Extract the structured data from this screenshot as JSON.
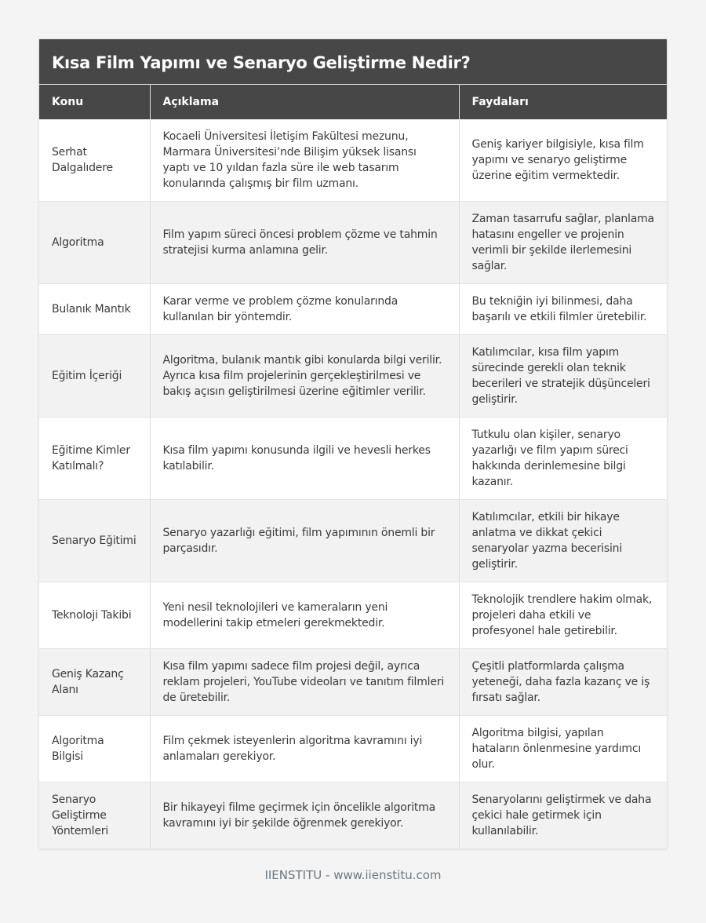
{
  "title": "Kısa Film Yapımı ve Senaryo Geliştirme Nedir?",
  "columns": [
    "Konu",
    "Açıklama",
    "Faydaları"
  ],
  "rows": [
    [
      "Serhat Dalgalıdere",
      "Kocaeli Üniversitesi İletişim Fakültesi mezunu, Marmara Üniversitesi’nde Bilişim yüksek lisansı yaptı ve 10 yıldan fazla süre ile web tasarım konularında çalışmış bir film uzmanı.",
      "Geniş kariyer bilgisiyle, kısa film yapımı ve senaryo geliştirme üzerine eğitim vermektedir."
    ],
    [
      "Algoritma",
      "Film yapım süreci öncesi problem çözme ve tahmin stratejisi kurma anlamına gelir.",
      "Zaman tasarrufu sağlar, planlama hatasını engeller ve projenin verimli bir şekilde ilerlemesini sağlar."
    ],
    [
      "Bulanık Mantık",
      "Karar verme ve problem çözme konularında kullanılan bir yöntemdir.",
      "Bu tekniğin iyi bilinmesi, daha başarılı ve etkili filmler üretebilir."
    ],
    [
      "Eğitim İçeriği",
      "Algoritma, bulanık mantık gibi konularda bilgi verilir. Ayrıca kısa film projelerinin gerçekleştirilmesi ve bakış açısın geliştirilmesi üzerine eğitimler verilir.",
      "Katılımcılar, kısa film yapım sürecinde gerekli olan teknik becerileri ve stratejik düşünceleri geliştirir."
    ],
    [
      "Eğitime Kimler Katılmalı?",
      "Kısa film yapımı konusunda ilgili ve hevesli herkes katılabilir.",
      "Tutkulu olan kişiler, senaryo yazarlığı ve film yapım süreci hakkında derinlemesine bilgi kazanır."
    ],
    [
      "Senaryo Eğitimi",
      "Senaryo yazarlığı eğitimi, film yapımının önemli bir parçasıdır.",
      "Katılımcılar, etkili bir hikaye anlatma ve dikkat çekici senaryolar yazma becerisini geliştirir."
    ],
    [
      "Teknoloji Takibi",
      "Yeni nesil teknolojileri ve kameraların yeni modellerini takip etmeleri gerekmektedir.",
      "Teknolojik trendlere hakim olmak, projeleri daha etkili ve profesyonel hale getirebilir."
    ],
    [
      "Geniş Kazanç Alanı",
      "Kısa film yapımı sadece film projesi değil, ayrıca reklam projeleri, YouTube videoları ve tanıtım filmleri de üretebilir.",
      "Çeşitli platformlarda çalışma yeteneği, daha fazla kazanç ve iş fırsatı sağlar."
    ],
    [
      "Algoritma Bilgisi",
      "Film çekmek isteyenlerin algoritma kavramını iyi anlamaları gerekiyor.",
      "Algoritma bilgisi, yapılan hataların önlenmesine yardımcı olur."
    ],
    [
      "Senaryo Geliştirme Yöntemleri",
      "Bir hikayeyi filme geçirmek için öncelikle algoritma kavramını iyi bir şekilde öğrenmek gerekiyor.",
      "Senaryolarını geliştirmek ve daha çekici hale getirmek için kullanılabilir."
    ]
  ],
  "footer": "IIENSTITU - www.iienstitu.com"
}
